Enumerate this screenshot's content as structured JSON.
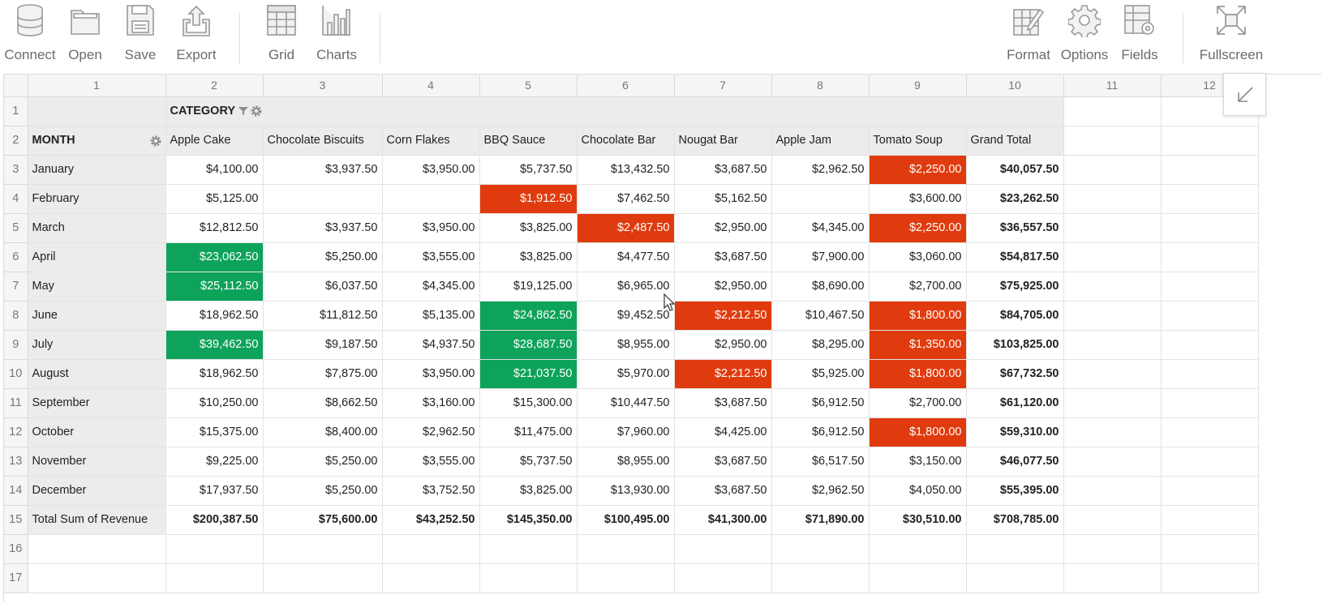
{
  "toolbar": {
    "connect": "Connect",
    "open": "Open",
    "save": "Save",
    "export": "Export",
    "grid": "Grid",
    "charts": "Charts",
    "format": "Format",
    "options": "Options",
    "fields": "Fields",
    "fullscreen": "Fullscreen"
  },
  "column_numbers": [
    "1",
    "2",
    "3",
    "4",
    "5",
    "6",
    "7",
    "8",
    "9",
    "10",
    "11",
    "12"
  ],
  "row_numbers": [
    "1",
    "2",
    "3",
    "4",
    "5",
    "6",
    "7",
    "8",
    "9",
    "10",
    "11",
    "12",
    "13",
    "14",
    "15",
    "16",
    "17"
  ],
  "pivot": {
    "column_field": "CATEGORY",
    "row_field": "MONTH",
    "columns": [
      "Apple Cake",
      "Chocolate Biscuits",
      "Corn Flakes",
      "BBQ Sauce",
      "Chocolate Bar",
      "Nougat Bar",
      "Apple Jam",
      "Tomato Soup",
      "Grand Total"
    ],
    "rows": [
      {
        "month": "January",
        "values": [
          "$4,100.00",
          "$3,937.50",
          "$3,950.00",
          "$5,737.50",
          "$13,432.50",
          "$3,687.50",
          "$2,962.50",
          "$2,250.00",
          "$40,057.50"
        ]
      },
      {
        "month": "February",
        "values": [
          "$5,125.00",
          "",
          "",
          "$1,912.50",
          "$7,462.50",
          "$5,162.50",
          "",
          "$3,600.00",
          "$23,262.50"
        ]
      },
      {
        "month": "March",
        "values": [
          "$12,812.50",
          "$3,937.50",
          "$3,950.00",
          "$3,825.00",
          "$2,487.50",
          "$2,950.00",
          "$4,345.00",
          "$2,250.00",
          "$36,557.50"
        ]
      },
      {
        "month": "April",
        "values": [
          "$23,062.50",
          "$5,250.00",
          "$3,555.00",
          "$3,825.00",
          "$4,477.50",
          "$3,687.50",
          "$7,900.00",
          "$3,060.00",
          "$54,817.50"
        ]
      },
      {
        "month": "May",
        "values": [
          "$25,112.50",
          "$6,037.50",
          "$4,345.00",
          "$19,125.00",
          "$6,965.00",
          "$2,950.00",
          "$8,690.00",
          "$2,700.00",
          "$75,925.00"
        ]
      },
      {
        "month": "June",
        "values": [
          "$18,962.50",
          "$11,812.50",
          "$5,135.00",
          "$24,862.50",
          "$9,452.50",
          "$2,212.50",
          "$10,467.50",
          "$1,800.00",
          "$84,705.00"
        ]
      },
      {
        "month": "July",
        "values": [
          "$39,462.50",
          "$9,187.50",
          "$4,937.50",
          "$28,687.50",
          "$8,955.00",
          "$2,950.00",
          "$8,295.00",
          "$1,350.00",
          "$103,825.00"
        ]
      },
      {
        "month": "August",
        "values": [
          "$18,962.50",
          "$7,875.00",
          "$3,950.00",
          "$21,037.50",
          "$5,970.00",
          "$2,212.50",
          "$5,925.00",
          "$1,800.00",
          "$67,732.50"
        ]
      },
      {
        "month": "September",
        "values": [
          "$10,250.00",
          "$8,662.50",
          "$3,160.00",
          "$15,300.00",
          "$10,447.50",
          "$3,687.50",
          "$6,912.50",
          "$2,700.00",
          "$61,120.00"
        ]
      },
      {
        "month": "October",
        "values": [
          "$15,375.00",
          "$8,400.00",
          "$2,962.50",
          "$11,475.00",
          "$7,960.00",
          "$4,425.00",
          "$6,912.50",
          "$1,800.00",
          "$59,310.00"
        ]
      },
      {
        "month": "November",
        "values": [
          "$9,225.00",
          "$5,250.00",
          "$3,555.00",
          "$5,737.50",
          "$8,955.00",
          "$3,687.50",
          "$6,517.50",
          "$3,150.00",
          "$46,077.50"
        ]
      },
      {
        "month": "December",
        "values": [
          "$17,937.50",
          "$5,250.00",
          "$3,752.50",
          "$3,825.00",
          "$13,930.00",
          "$3,687.50",
          "$2,962.50",
          "$4,050.00",
          "$55,395.00"
        ]
      }
    ],
    "total_label": "Total Sum of Revenue",
    "totals": [
      "$200,387.50",
      "$75,600.00",
      "$43,252.50",
      "$145,350.00",
      "$100,495.00",
      "$41,300.00",
      "$71,890.00",
      "$30,510.00",
      "$708,785.00"
    ]
  },
  "conditional_format": {
    "green": "#0ea35a",
    "red": "#e03b0e",
    "green_cells": [
      [
        3,
        0
      ],
      [
        4,
        0
      ],
      [
        6,
        0
      ],
      [
        5,
        3
      ],
      [
        6,
        3
      ],
      [
        7,
        3
      ]
    ],
    "red_cells": [
      [
        0,
        7
      ],
      [
        1,
        3
      ],
      [
        2,
        4
      ],
      [
        2,
        7
      ],
      [
        5,
        5
      ],
      [
        5,
        7
      ],
      [
        6,
        7
      ],
      [
        7,
        5
      ],
      [
        7,
        7
      ],
      [
        9,
        7
      ]
    ]
  }
}
